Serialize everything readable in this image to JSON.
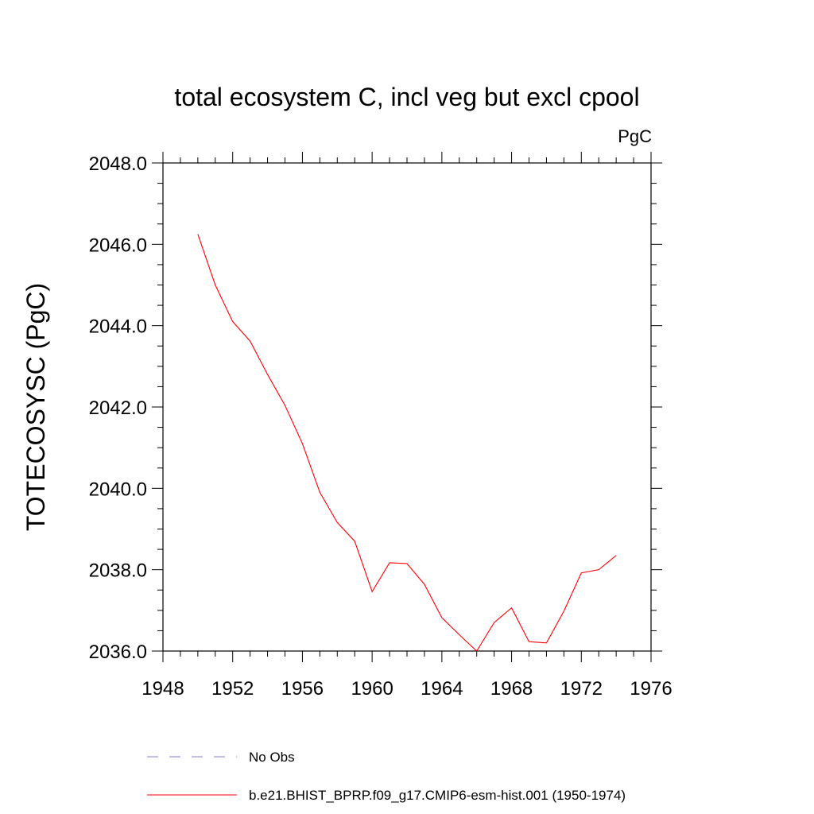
{
  "chart_data": {
    "type": "line",
    "title": "total ecosystem C, incl veg but excl cpool",
    "units": "PgC",
    "xlabel": "",
    "ylabel": "TOTECOSYSC  (PgC)",
    "xlim": [
      1948,
      1976
    ],
    "ylim": [
      2036.0,
      2048.0
    ],
    "x_ticks": [
      1948,
      1952,
      1956,
      1960,
      1964,
      1968,
      1972,
      1976
    ],
    "x_tick_labels": [
      "1948",
      "1952",
      "1956",
      "1960",
      "1964",
      "1968",
      "1972",
      "1976"
    ],
    "y_ticks": [
      2036.0,
      2038.0,
      2040.0,
      2042.0,
      2044.0,
      2046.0,
      2048.0
    ],
    "y_tick_labels": [
      "2036.0",
      "2038.0",
      "2040.0",
      "2042.0",
      "2044.0",
      "2046.0",
      "2048.0"
    ],
    "grid": false,
    "series": [
      {
        "name": "b.e21.BHIST_BPRP.f09_g17.CMIP6-esm-hist.001 (1950-1974)",
        "color": "#ff0000",
        "style": "solid",
        "x": [
          1950,
          1951,
          1952,
          1953,
          1954,
          1955,
          1956,
          1957,
          1958,
          1959,
          1960,
          1961,
          1962,
          1963,
          1964,
          1965,
          1966,
          1967,
          1968,
          1969,
          1970,
          1971,
          1972,
          1973,
          1974
        ],
        "y": [
          2046.25,
          2045.0,
          2044.1,
          2043.62,
          2042.8,
          2042.04,
          2041.1,
          2039.9,
          2039.16,
          2038.7,
          2037.46,
          2038.17,
          2038.15,
          2037.64,
          2036.82,
          2036.4,
          2036.0,
          2036.7,
          2037.06,
          2036.23,
          2036.2,
          2036.98,
          2037.92,
          2038.0,
          2038.35
        ]
      }
    ],
    "legend": [
      {
        "label": "No Obs",
        "color": "#8080c0",
        "style": "dashed"
      },
      {
        "label": "b.e21.BHIST_BPRP.f09_g17.CMIP6-esm-hist.001 (1950-1974)",
        "color": "#ff0000",
        "style": "solid"
      }
    ],
    "legend_placement": "bottom"
  }
}
